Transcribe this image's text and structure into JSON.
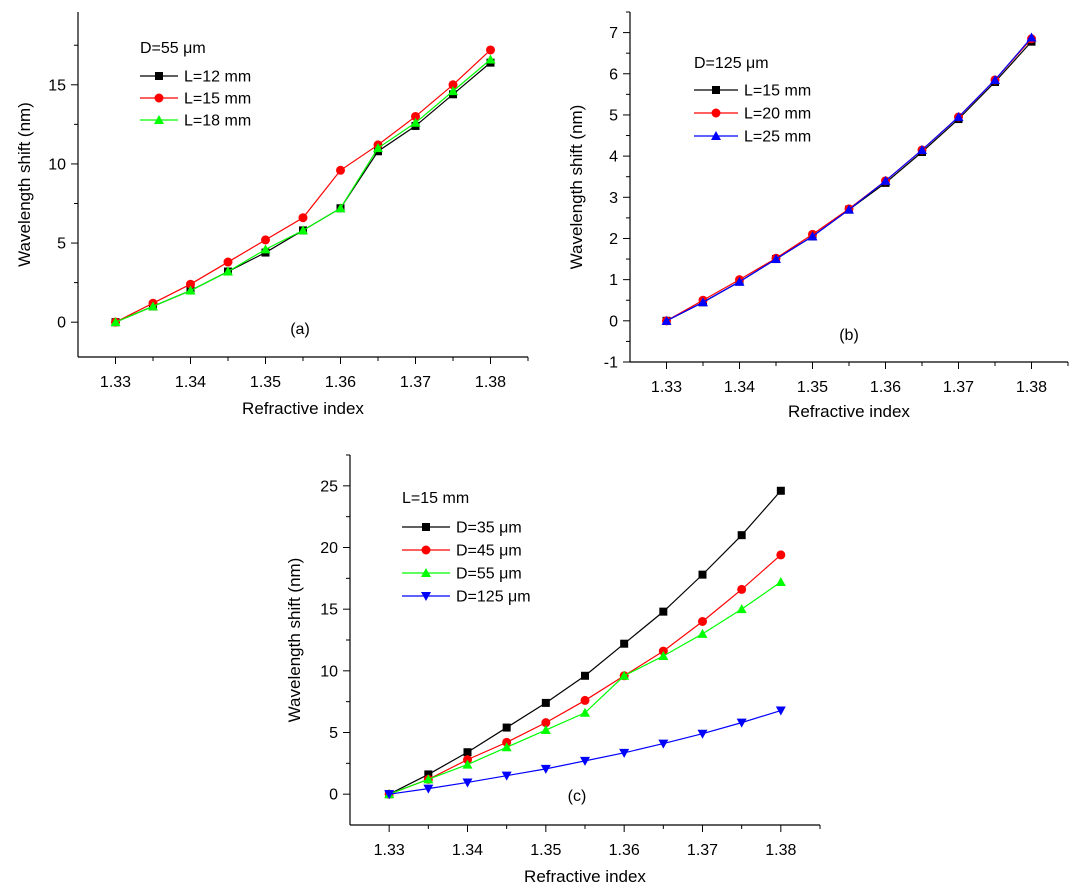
{
  "chart_data": [
    {
      "type": "line",
      "panel_label": "(a)",
      "xlabel": "Refractive index",
      "ylabel": "Wavelength shift (nm)",
      "xlim": [
        1.325,
        1.385
      ],
      "ylim": [
        -2.2,
        19.6
      ],
      "x_ticks": [
        "1.33",
        "1.34",
        "1.35",
        "1.36",
        "1.37",
        "1.38"
      ],
      "y_ticks": [
        "0",
        "5",
        "10",
        "15"
      ],
      "legend_title": "D=55 μm",
      "legend_position": "top-left",
      "grid": false,
      "x": [
        1.33,
        1.335,
        1.34,
        1.345,
        1.35,
        1.355,
        1.36,
        1.365,
        1.37,
        1.375,
        1.38
      ],
      "series": [
        {
          "name": "L=12 mm",
          "color": "#000000",
          "marker": "square",
          "values": [
            0,
            1.0,
            2.0,
            3.2,
            4.4,
            5.8,
            7.2,
            10.8,
            12.4,
            14.4,
            16.4
          ]
        },
        {
          "name": "L=15 mm",
          "color": "#ff0000",
          "marker": "circle",
          "values": [
            0,
            1.2,
            2.4,
            3.8,
            5.2,
            6.6,
            9.6,
            11.2,
            13.0,
            15.0,
            17.2
          ]
        },
        {
          "name": "L=18 mm",
          "color": "#00ff00",
          "marker": "triangle-up",
          "values": [
            0,
            1.0,
            2.0,
            3.2,
            4.6,
            5.8,
            7.2,
            11.0,
            12.6,
            14.6,
            16.6
          ]
        }
      ]
    },
    {
      "type": "line",
      "panel_label": "(b)",
      "xlabel": "Refractive index",
      "ylabel": "Wavelength shift (nm)",
      "xlim": [
        1.325,
        1.385
      ],
      "ylim": [
        -1,
        7.5
      ],
      "x_ticks": [
        "1.33",
        "1.34",
        "1.35",
        "1.36",
        "1.37",
        "1.38"
      ],
      "y_ticks": [
        "-1",
        "0",
        "1",
        "2",
        "3",
        "4",
        "5",
        "6",
        "7"
      ],
      "legend_title": "D=125 μm",
      "legend_position": "top-left",
      "grid": false,
      "x": [
        1.33,
        1.335,
        1.34,
        1.345,
        1.35,
        1.355,
        1.36,
        1.365,
        1.37,
        1.375,
        1.38
      ],
      "series": [
        {
          "name": "L=15 mm",
          "color": "#000000",
          "marker": "square",
          "values": [
            0,
            0.45,
            0.95,
            1.5,
            2.05,
            2.7,
            3.35,
            4.1,
            4.9,
            5.8,
            6.78
          ]
        },
        {
          "name": "L=20 mm",
          "color": "#ff0000",
          "marker": "circle",
          "values": [
            0,
            0.5,
            1.0,
            1.52,
            2.1,
            2.72,
            3.4,
            4.15,
            4.95,
            5.85,
            6.85
          ]
        },
        {
          "name": "L=25 mm",
          "color": "#0000ff",
          "marker": "triangle-up",
          "values": [
            0,
            0.45,
            0.95,
            1.5,
            2.05,
            2.7,
            3.4,
            4.15,
            4.95,
            5.85,
            6.88
          ]
        }
      ]
    },
    {
      "type": "line",
      "panel_label": "(c)",
      "xlabel": "Refractive index",
      "ylabel": "Wavelength shift (nm)",
      "xlim": [
        1.325,
        1.385
      ],
      "ylim": [
        -2.5,
        27.5
      ],
      "x_ticks": [
        "1.33",
        "1.34",
        "1.35",
        "1.36",
        "1.37",
        "1.38"
      ],
      "y_ticks": [
        "0",
        "5",
        "10",
        "15",
        "20",
        "25"
      ],
      "legend_title": "L=15 mm",
      "legend_position": "top-left",
      "grid": false,
      "x": [
        1.33,
        1.335,
        1.34,
        1.345,
        1.35,
        1.355,
        1.36,
        1.365,
        1.37,
        1.375,
        1.38
      ],
      "series": [
        {
          "name": "D=35 μm",
          "color": "#000000",
          "marker": "square",
          "values": [
            0,
            1.6,
            3.4,
            5.4,
            7.4,
            9.6,
            12.2,
            14.8,
            17.8,
            21.0,
            24.6
          ]
        },
        {
          "name": "D=45 μm",
          "color": "#ff0000",
          "marker": "circle",
          "values": [
            0,
            1.2,
            2.8,
            4.2,
            5.8,
            7.6,
            9.6,
            11.6,
            14.0,
            16.6,
            19.4
          ]
        },
        {
          "name": "D=55 μm",
          "color": "#00ff00",
          "marker": "triangle-up",
          "values": [
            0,
            1.2,
            2.4,
            3.8,
            5.2,
            6.6,
            9.6,
            11.2,
            13.0,
            15.0,
            17.2
          ]
        },
        {
          "name": "D=125 μm",
          "color": "#0000ff",
          "marker": "triangle-down",
          "values": [
            0,
            0.45,
            0.95,
            1.5,
            2.05,
            2.7,
            3.35,
            4.1,
            4.9,
            5.8,
            6.78
          ]
        }
      ]
    }
  ]
}
